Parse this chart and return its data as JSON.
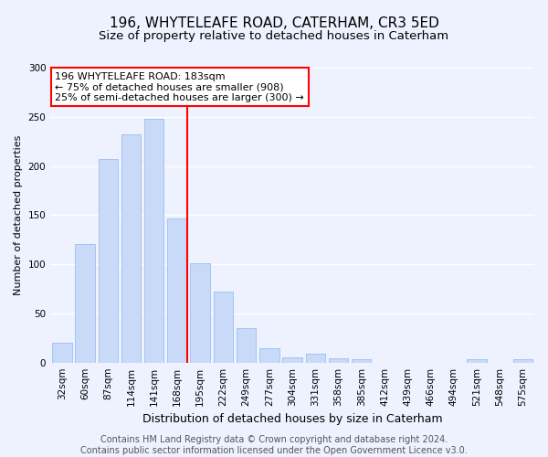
{
  "title": "196, WHYTELEAFE ROAD, CATERHAM, CR3 5ED",
  "subtitle": "Size of property relative to detached houses in Caterham",
  "xlabel": "Distribution of detached houses by size in Caterham",
  "ylabel": "Number of detached properties",
  "categories": [
    "32sqm",
    "60sqm",
    "87sqm",
    "114sqm",
    "141sqm",
    "168sqm",
    "195sqm",
    "222sqm",
    "249sqm",
    "277sqm",
    "304sqm",
    "331sqm",
    "358sqm",
    "385sqm",
    "412sqm",
    "439sqm",
    "466sqm",
    "494sqm",
    "521sqm",
    "548sqm",
    "575sqm"
  ],
  "values": [
    20,
    121,
    207,
    232,
    248,
    147,
    101,
    72,
    35,
    15,
    5,
    9,
    4,
    3,
    0,
    0,
    0,
    0,
    3,
    0,
    3
  ],
  "bar_color": "#c9daf8",
  "bar_edgecolor": "#a4c2f4",
  "vline_color": "red",
  "annotation_text": "196 WHYTELEAFE ROAD: 183sqm\n← 75% of detached houses are smaller (908)\n25% of semi-detached houses are larger (300) →",
  "annotation_box_color": "white",
  "annotation_box_edgecolor": "red",
  "ylim": [
    0,
    300
  ],
  "yticks": [
    0,
    50,
    100,
    150,
    200,
    250,
    300
  ],
  "footer": "Contains HM Land Registry data © Crown copyright and database right 2024.\nContains public sector information licensed under the Open Government Licence v3.0.",
  "bg_color": "#eef2ff",
  "plot_bg_color": "#eef2ff",
  "grid_color": "white",
  "title_fontsize": 11,
  "subtitle_fontsize": 9.5,
  "xlabel_fontsize": 9,
  "ylabel_fontsize": 8,
  "tick_fontsize": 7.5,
  "footer_fontsize": 7,
  "annotation_fontsize": 8
}
